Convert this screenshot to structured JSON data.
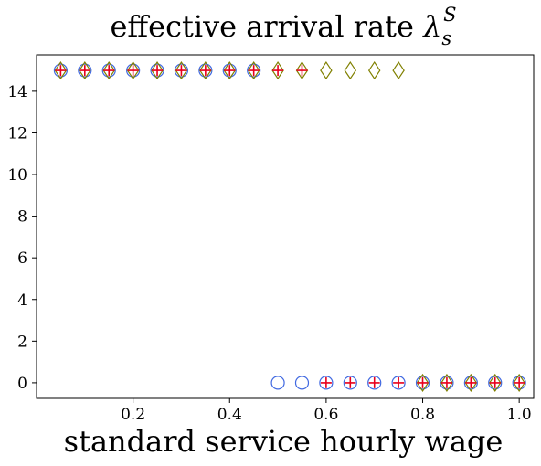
{
  "chart_data": {
    "type": "scatter",
    "title_main": "effective arrival rate ",
    "title_symbol": "λ",
    "title_sup": "S",
    "title_sub": "s",
    "xlabel": "standard service hourly wage",
    "ylabel": "",
    "xlim": [
      0.0,
      1.03
    ],
    "ylim": [
      -0.75,
      15.75
    ],
    "xticks": [
      0.2,
      0.4,
      0.6,
      0.8,
      1.0
    ],
    "xtick_labels": [
      "0.2",
      "0.4",
      "0.6",
      "0.8",
      "1.0"
    ],
    "yticks": [
      0,
      2,
      4,
      6,
      8,
      10,
      12,
      14
    ],
    "ytick_labels": [
      "0",
      "2",
      "4",
      "6",
      "8",
      "10",
      "12",
      "14"
    ],
    "grid": false,
    "legend": "none",
    "series": [
      {
        "marker": "circle",
        "color": "#4169e1",
        "x": [
          0.05,
          0.1,
          0.15,
          0.2,
          0.25,
          0.3,
          0.35,
          0.4,
          0.45,
          0.5,
          0.55,
          0.6,
          0.65,
          0.7,
          0.75,
          0.8,
          0.85,
          0.9,
          0.95,
          1.0
        ],
        "y": [
          15,
          15,
          15,
          15,
          15,
          15,
          15,
          15,
          15,
          0,
          0,
          0,
          0,
          0,
          0,
          0,
          0,
          0,
          0,
          0
        ]
      },
      {
        "marker": "diamond",
        "color": "#808000",
        "x": [
          0.05,
          0.1,
          0.15,
          0.2,
          0.25,
          0.3,
          0.35,
          0.4,
          0.45,
          0.5,
          0.55,
          0.6,
          0.65,
          0.7,
          0.75,
          0.8,
          0.85,
          0.9,
          0.95,
          1.0
        ],
        "y": [
          15,
          15,
          15,
          15,
          15,
          15,
          15,
          15,
          15,
          15,
          15,
          15,
          15,
          15,
          15,
          0,
          0,
          0,
          0,
          0
        ]
      },
      {
        "marker": "plus",
        "color": "#e8001c",
        "x": [
          0.05,
          0.1,
          0.15,
          0.2,
          0.25,
          0.3,
          0.35,
          0.4,
          0.45,
          0.5,
          0.55,
          0.6,
          0.65,
          0.7,
          0.75,
          0.8,
          0.85,
          0.9,
          0.95,
          1.0
        ],
        "y": [
          15,
          15,
          15,
          15,
          15,
          15,
          15,
          15,
          15,
          15,
          15,
          0,
          0,
          0,
          0,
          0,
          0,
          0,
          0,
          0
        ]
      }
    ]
  }
}
